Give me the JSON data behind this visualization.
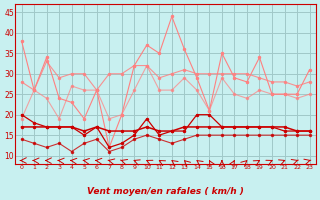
{
  "title": "",
  "xlabel": "Vent moyen/en rafales ( km/h )",
  "ylabel": "",
  "background_color": "#c8f0f0",
  "grid_color": "#a0c8c8",
  "xlim": [
    -0.5,
    23.5
  ],
  "ylim": [
    8,
    47
  ],
  "yticks": [
    10,
    15,
    20,
    25,
    30,
    35,
    40,
    45
  ],
  "xticks": [
    0,
    1,
    2,
    3,
    4,
    5,
    6,
    7,
    8,
    9,
    10,
    11,
    12,
    13,
    14,
    15,
    16,
    17,
    18,
    19,
    20,
    21,
    22,
    23
  ],
  "hours": [
    0,
    1,
    2,
    3,
    4,
    5,
    6,
    7,
    8,
    9,
    10,
    11,
    12,
    13,
    14,
    15,
    16,
    17,
    18,
    19,
    20,
    21,
    22,
    23
  ],
  "gust_max": [
    38,
    26,
    34,
    24,
    23,
    19,
    26,
    12,
    20,
    32,
    37,
    35,
    44,
    36,
    29,
    21,
    35,
    29,
    28,
    34,
    25,
    25,
    25,
    31
  ],
  "gust_avg": [
    28,
    26,
    33,
    29,
    30,
    30,
    26,
    30,
    30,
    32,
    32,
    29,
    30,
    31,
    30,
    30,
    30,
    30,
    30,
    29,
    28,
    28,
    27,
    28
  ],
  "gust_min": [
    19,
    26,
    24,
    19,
    27,
    26,
    26,
    19,
    20,
    26,
    32,
    26,
    26,
    29,
    26,
    21,
    29,
    25,
    24,
    26,
    25,
    25,
    24,
    25
  ],
  "wind_max": [
    20,
    18,
    17,
    17,
    17,
    15,
    17,
    12,
    13,
    15,
    19,
    15,
    16,
    16,
    20,
    20,
    17,
    17,
    17,
    17,
    17,
    16,
    16,
    16
  ],
  "wind_avg": [
    17,
    17,
    17,
    17,
    17,
    16,
    17,
    16,
    16,
    16,
    17,
    16,
    16,
    17,
    17,
    17,
    17,
    17,
    17,
    17,
    17,
    17,
    16,
    16
  ],
  "wind_min": [
    14,
    13,
    12,
    13,
    11,
    13,
    14,
    11,
    12,
    14,
    15,
    14,
    13,
    14,
    15,
    15,
    15,
    15,
    15,
    15,
    15,
    15,
    15,
    15
  ],
  "arrow_angles": [
    180,
    170,
    175,
    165,
    160,
    155,
    150,
    145,
    140,
    135,
    130,
    125,
    120,
    115,
    110,
    100,
    90,
    80,
    70,
    60,
    55,
    50,
    45,
    40
  ],
  "color_gust": "#ff8080",
  "color_wind": "#cc0000",
  "color_wind_avg": "#ff0000"
}
